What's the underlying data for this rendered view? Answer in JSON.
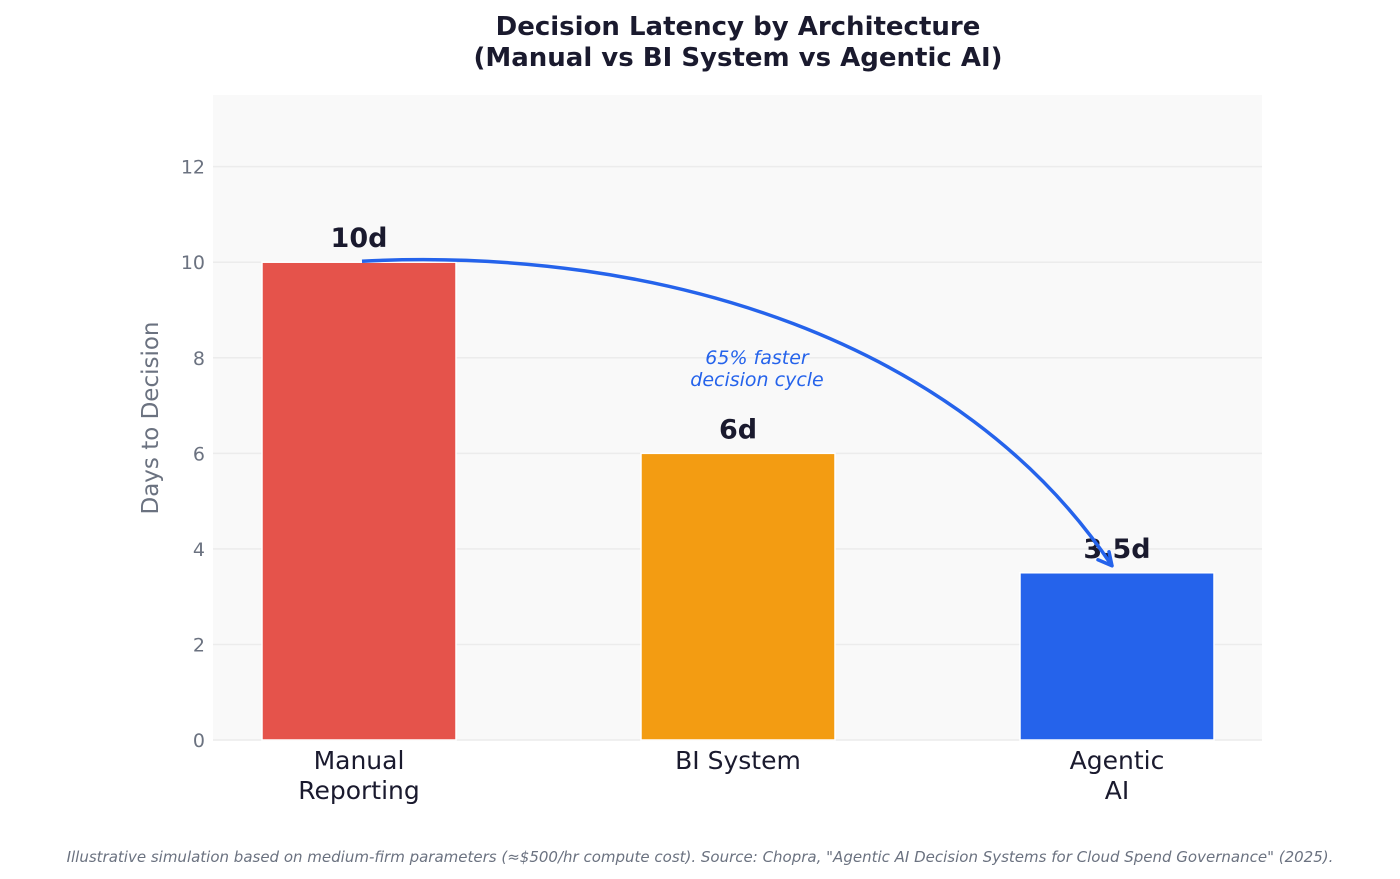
{
  "chart_data": {
    "type": "bar",
    "title": [
      "Decision Latency by Architecture",
      "(Manual vs BI System vs Agentic AI)"
    ],
    "categories": [
      [
        "Manual",
        "Reporting"
      ],
      [
        "BI System"
      ],
      [
        "Agentic",
        "AI"
      ]
    ],
    "values": [
      10,
      6,
      3.5
    ],
    "data_labels": [
      "10d",
      "6d",
      "3.5d"
    ],
    "colors": [
      "#e5534b",
      "#f39c12",
      "#2563eb"
    ],
    "xlabel": "",
    "ylabel": "Days to Decision",
    "ylim": [
      0,
      13.5
    ],
    "yticks": [
      0,
      2,
      4,
      6,
      8,
      10,
      12
    ],
    "grid": true,
    "plot_background": "#f9f9f9",
    "annotation": {
      "text": [
        "65% faster",
        "decision cycle"
      ],
      "arrow_from": {
        "category": "Manual Reporting",
        "value": 10
      },
      "arrow_to": {
        "category": "Agentic AI",
        "value": 3.5
      },
      "color": "#2563eb"
    },
    "footnote": "Illustrative simulation based on medium-firm parameters (≈$500/hr compute cost). Source: Chopra, \"Agentic AI Decision Systems for Cloud Spend Governance\" (2025)."
  }
}
